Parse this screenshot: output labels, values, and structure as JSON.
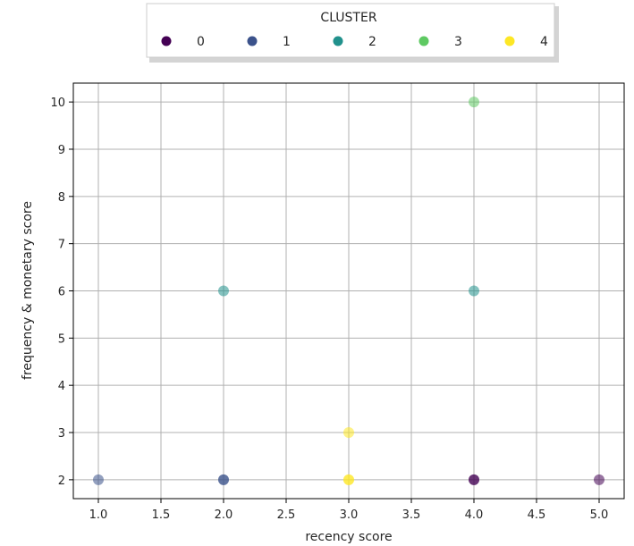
{
  "chart_data": {
    "type": "scatter",
    "xlabel": "recency score",
    "ylabel": "frequency & monetary score",
    "xlim": [
      0.8,
      5.2
    ],
    "ylim": [
      1.6,
      10.4
    ],
    "xticks": [
      "1.0",
      "1.5",
      "2.0",
      "2.5",
      "3.0",
      "3.5",
      "4.0",
      "4.5",
      "5.0"
    ],
    "yticks": [
      "2",
      "3",
      "4",
      "5",
      "6",
      "7",
      "8",
      "9",
      "10"
    ],
    "grid": true,
    "legend": {
      "title": "CLUSTER",
      "placement": "top-center, outside plot",
      "entries": [
        "0",
        "1",
        "2",
        "3",
        "4"
      ]
    },
    "series": [
      {
        "name": "0",
        "color": "#440154",
        "points": [
          {
            "x": 4,
            "y": 2
          },
          {
            "x": 4,
            "y": 2
          },
          {
            "x": 5,
            "y": 2
          }
        ]
      },
      {
        "name": "1",
        "color": "#3b528b",
        "points": [
          {
            "x": 1,
            "y": 2
          },
          {
            "x": 2,
            "y": 2
          },
          {
            "x": 2,
            "y": 2
          }
        ]
      },
      {
        "name": "2",
        "color": "#21918c",
        "points": [
          {
            "x": 2,
            "y": 6
          },
          {
            "x": 4,
            "y": 6
          }
        ]
      },
      {
        "name": "3",
        "color": "#5ec962",
        "points": [
          {
            "x": 4,
            "y": 10
          }
        ]
      },
      {
        "name": "4",
        "color": "#fde725",
        "points": [
          {
            "x": 3,
            "y": 3
          },
          {
            "x": 3,
            "y": 2
          },
          {
            "x": 3,
            "y": 2
          }
        ]
      }
    ]
  }
}
